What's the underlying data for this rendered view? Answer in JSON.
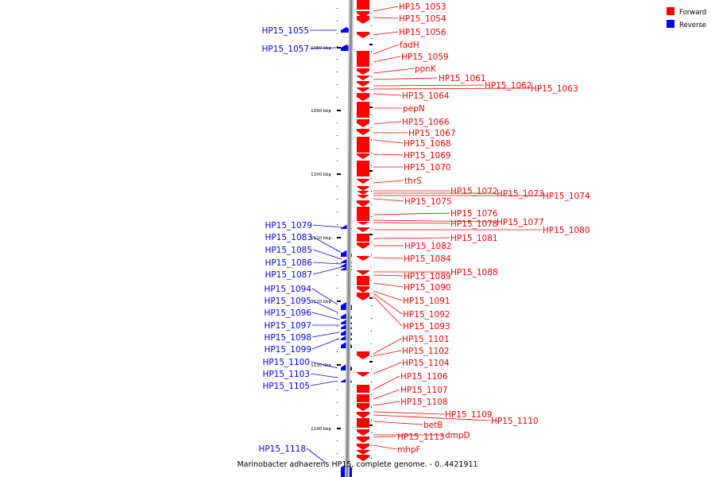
{
  "caption": "Marinobacter adhaerens HP15, complete genome. - 0..4421911",
  "legend": [
    {
      "label": "Forward",
      "color": "#ff0000"
    },
    {
      "label": "Reverse",
      "color": "#0000ff"
    }
  ],
  "colors": {
    "forward": "#ff0000",
    "reverse": "#0000ff",
    "backbone": "#888888"
  },
  "ticks": [
    {
      "label": "1080 kbp"
    },
    {
      "label": "1090 kbp"
    },
    {
      "label": "1100 kbp"
    },
    {
      "label": "1110 kbp"
    },
    {
      "label": "1120 kbp"
    },
    {
      "label": "1130 kbp"
    },
    {
      "label": "1140 kbp"
    }
  ],
  "forward_genes": [
    "HP15_1053",
    "HP15_1054",
    "HP15_1056",
    "fadH",
    "HP15_1059",
    "ppnK",
    "HP15_1061",
    "HP15_1062",
    "HP15_1063",
    "HP15_1064",
    "pepN",
    "HP15_1066",
    "HP15_1067",
    "HP15_1068",
    "HP15_1069",
    "HP15_1070",
    "thrS",
    "HP15_1072",
    "HP15_1073",
    "HP15_1074",
    "HP15_1075",
    "HP15_1076",
    "HP15_1078",
    "HP15_1077",
    "HP15_1080",
    "HP15_1081",
    "HP15_1082",
    "HP15_1084",
    "HP15_1088",
    "HP15_1089",
    "HP15_1090",
    "HP15_1091",
    "HP15_1092",
    "HP15_1093",
    "HP15_1101",
    "HP15_1102",
    "HP15_1104",
    "HP15_1106",
    "HP15_1107",
    "HP15_1108",
    "HP15_1109",
    "HP15_1110",
    "betB",
    "dmpD",
    "HP15_1113",
    "mhpF"
  ],
  "reverse_genes": [
    "HP15_1055",
    "HP15_1057",
    "HP15_1079",
    "HP15_1083",
    "HP15_1085",
    "HP15_1086",
    "HP15_1087",
    "HP15_1094",
    "HP15_1095",
    "HP15_1096",
    "HP15_1097",
    "HP15_1098",
    "HP15_1099",
    "HP15_1100",
    "HP15_1103",
    "HP15_1105",
    "HP15_1118"
  ]
}
